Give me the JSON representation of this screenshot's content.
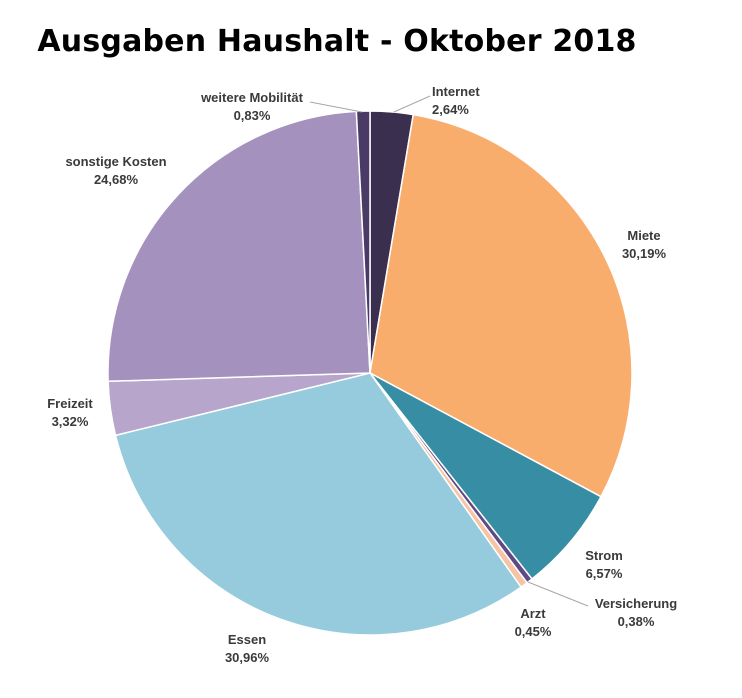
{
  "chart_data": {
    "type": "pie",
    "title": "Ausgaben Haushalt - Oktober 2018",
    "start_angle_deg": 0,
    "direction": "clockwise",
    "slices": [
      {
        "label": "Internet",
        "pct_text": "2,64%",
        "value": 2.64,
        "color": "#3b2f4f"
      },
      {
        "label": "Miete",
        "pct_text": "30,19%",
        "value": 30.19,
        "color": "#f9ad6d"
      },
      {
        "label": "Strom",
        "pct_text": "6,57%",
        "value": 6.57,
        "color": "#378ea4"
      },
      {
        "label": "Versicherung",
        "pct_text": "0,38%",
        "value": 0.38,
        "color": "#5e4a85"
      },
      {
        "label": "Arzt",
        "pct_text": "0,45%",
        "value": 0.45,
        "color": "#f6c3a4"
      },
      {
        "label": "Essen",
        "pct_text": "30,96%",
        "value": 30.96,
        "color": "#95cbdc"
      },
      {
        "label": "Freizeit",
        "pct_text": "3,32%",
        "value": 3.32,
        "color": "#b7a5cb"
      },
      {
        "label": "sonstige Kosten",
        "pct_text": "24,68%",
        "value": 24.68,
        "color": "#a591bd"
      },
      {
        "label": "weitere Mobilität",
        "pct_text": "0,83%",
        "value": 0.83,
        "color": "#4a3b66"
      }
    ]
  }
}
